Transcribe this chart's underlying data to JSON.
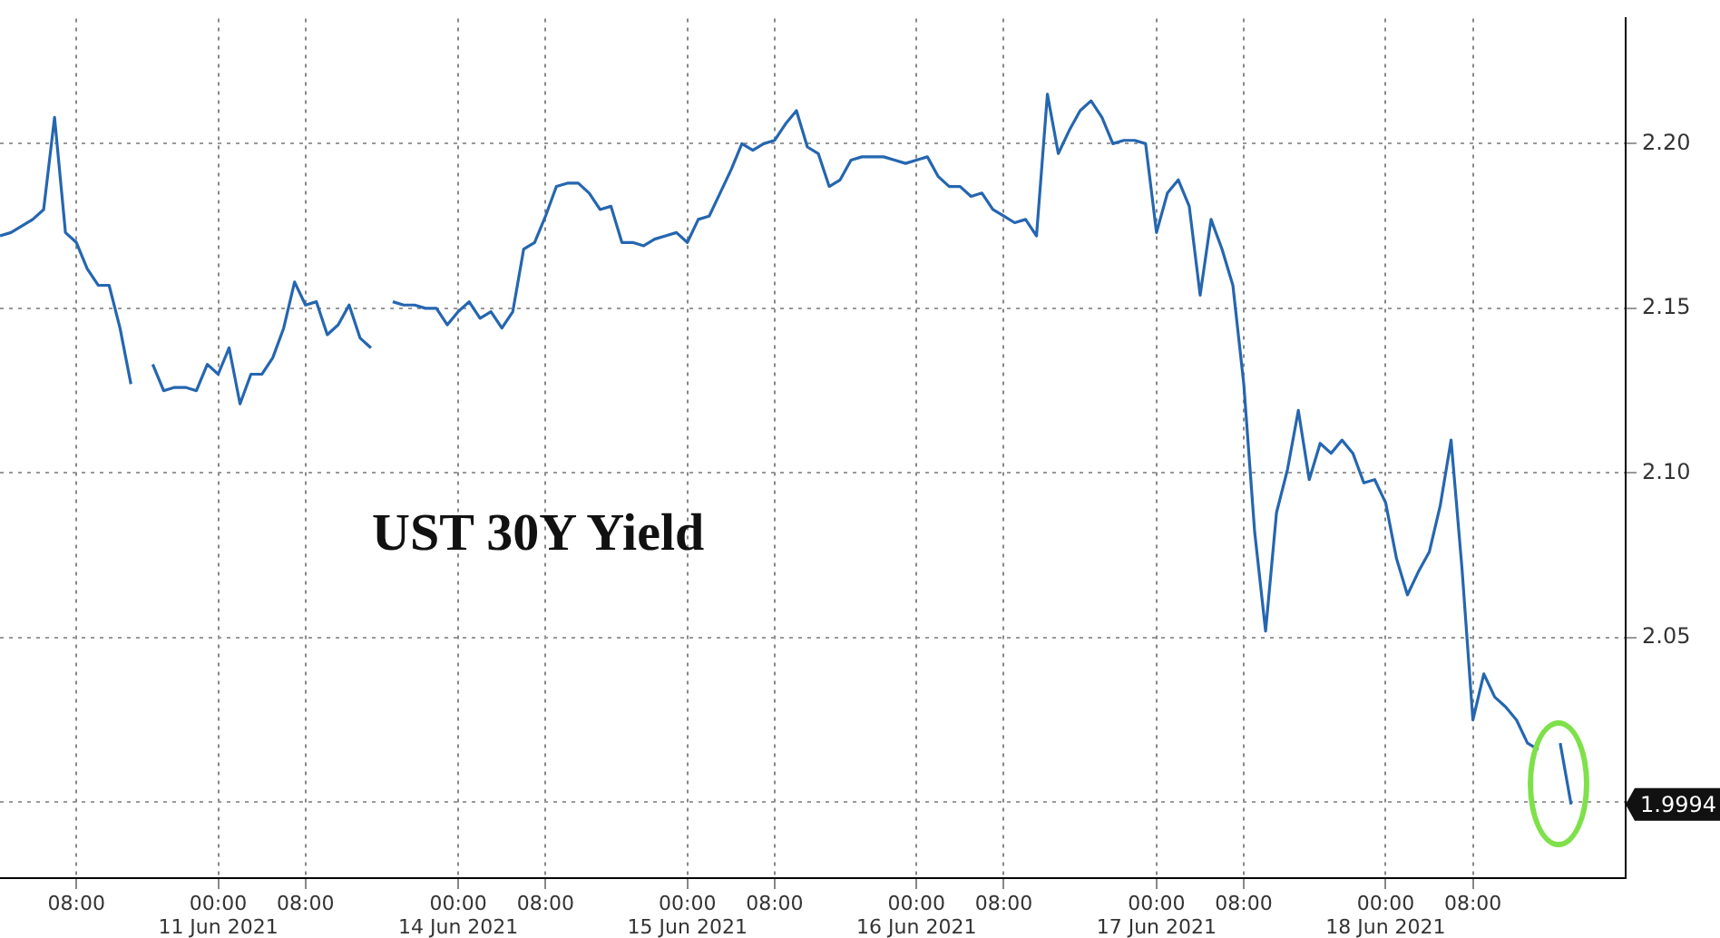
{
  "chart_data": {
    "type": "line",
    "title": "UST 30Y Yield",
    "categories": [
      null,
      null,
      null,
      null,
      null,
      null,
      null,
      "08:00",
      null,
      null,
      null,
      null,
      null,
      null,
      null,
      null,
      null,
      null,
      null,
      null,
      "00:00\n11 Jun 2021",
      null,
      null,
      null,
      null,
      null,
      null,
      null,
      "08:00",
      null,
      null,
      null,
      null,
      null,
      null,
      null,
      null,
      null,
      null,
      null,
      null,
      null,
      "00:00\n14 Jun 2021",
      null,
      null,
      null,
      null,
      null,
      null,
      null,
      "08:00",
      null,
      null,
      null,
      null,
      null,
      null,
      null,
      null,
      null,
      null,
      null,
      null,
      "00:00\n15 Jun 2021",
      null,
      null,
      null,
      null,
      null,
      null,
      null,
      "08:00",
      null,
      null,
      null,
      null,
      null,
      null,
      null,
      null,
      null,
      null,
      null,
      null,
      "00:00\n16 Jun 2021",
      null,
      null,
      null,
      null,
      null,
      null,
      null,
      "08:00",
      null,
      null,
      null,
      null,
      null,
      null,
      null,
      null,
      null,
      null,
      null,
      null,
      null,
      "00:00\n17 Jun 2021",
      null,
      null,
      null,
      null,
      null,
      null,
      null,
      "08:00",
      null,
      null,
      null,
      null,
      null,
      null,
      null,
      null,
      null,
      null,
      null,
      null,
      "00:00\n18 Jun 2021",
      null,
      null,
      null,
      null,
      null,
      null,
      null,
      "08:00",
      null,
      null,
      null,
      null,
      null,
      null,
      null,
      null,
      null,
      null,
      null,
      null,
      null,
      null
    ],
    "series": [
      {
        "color": "#2566b0",
        "values": [
          2.172,
          2.173,
          2.175,
          2.177,
          2.18,
          2.208,
          2.173,
          2.17,
          2.162,
          2.157,
          2.157,
          2.144,
          2.127,
          null,
          2.133,
          2.125,
          2.126,
          2.126,
          2.125,
          2.133,
          2.13,
          2.138,
          2.121,
          2.13,
          2.13,
          2.135,
          2.144,
          2.158,
          2.151,
          2.152,
          2.142,
          2.145,
          2.151,
          2.141,
          2.138,
          null,
          2.152,
          2.151,
          2.151,
          2.15,
          2.15,
          2.145,
          2.149,
          2.152,
          2.147,
          2.149,
          2.144,
          2.149,
          2.168,
          2.17,
          2.178,
          2.187,
          2.188,
          2.188,
          2.185,
          2.18,
          2.181,
          2.17,
          2.17,
          2.169,
          2.171,
          2.172,
          2.173,
          2.17,
          2.177,
          2.178,
          2.185,
          2.192,
          2.2,
          2.198,
          2.2,
          2.201,
          2.206,
          2.21,
          2.199,
          2.197,
          2.187,
          2.189,
          2.195,
          2.196,
          2.196,
          2.196,
          2.195,
          2.194,
          2.195,
          2.196,
          2.19,
          2.187,
          2.187,
          2.184,
          2.185,
          2.18,
          2.178,
          2.176,
          2.177,
          2.172,
          2.215,
          2.197,
          2.204,
          2.21,
          2.213,
          2.208,
          2.2,
          2.201,
          2.201,
          2.2,
          2.173,
          2.185,
          2.189,
          2.181,
          2.154,
          2.177,
          2.168,
          2.157,
          2.127,
          2.082,
          2.052,
          2.088,
          2.101,
          2.119,
          2.098,
          2.109,
          2.106,
          2.11,
          2.106,
          2.097,
          2.098,
          2.091,
          2.074,
          2.063,
          2.07,
          2.076,
          2.09,
          2.11,
          2.071,
          2.025,
          2.039,
          2.032,
          2.029,
          2.025,
          2.018,
          2.016,
          null,
          2.018,
          1.9994,
          null,
          null,
          null,
          null,
          null
        ]
      }
    ],
    "ylim": [
      1.977,
      2.238
    ],
    "yticks": [
      {
        "value": 2.0,
        "label": null
      },
      {
        "value": 2.05,
        "label": "2.05"
      },
      {
        "value": 2.1,
        "label": "2.10"
      },
      {
        "value": 2.15,
        "label": "2.15"
      },
      {
        "value": 2.2,
        "label": "2.20"
      }
    ],
    "grid": true,
    "line_style": "solid",
    "annotations": [
      "1.9994"
    ]
  }
}
